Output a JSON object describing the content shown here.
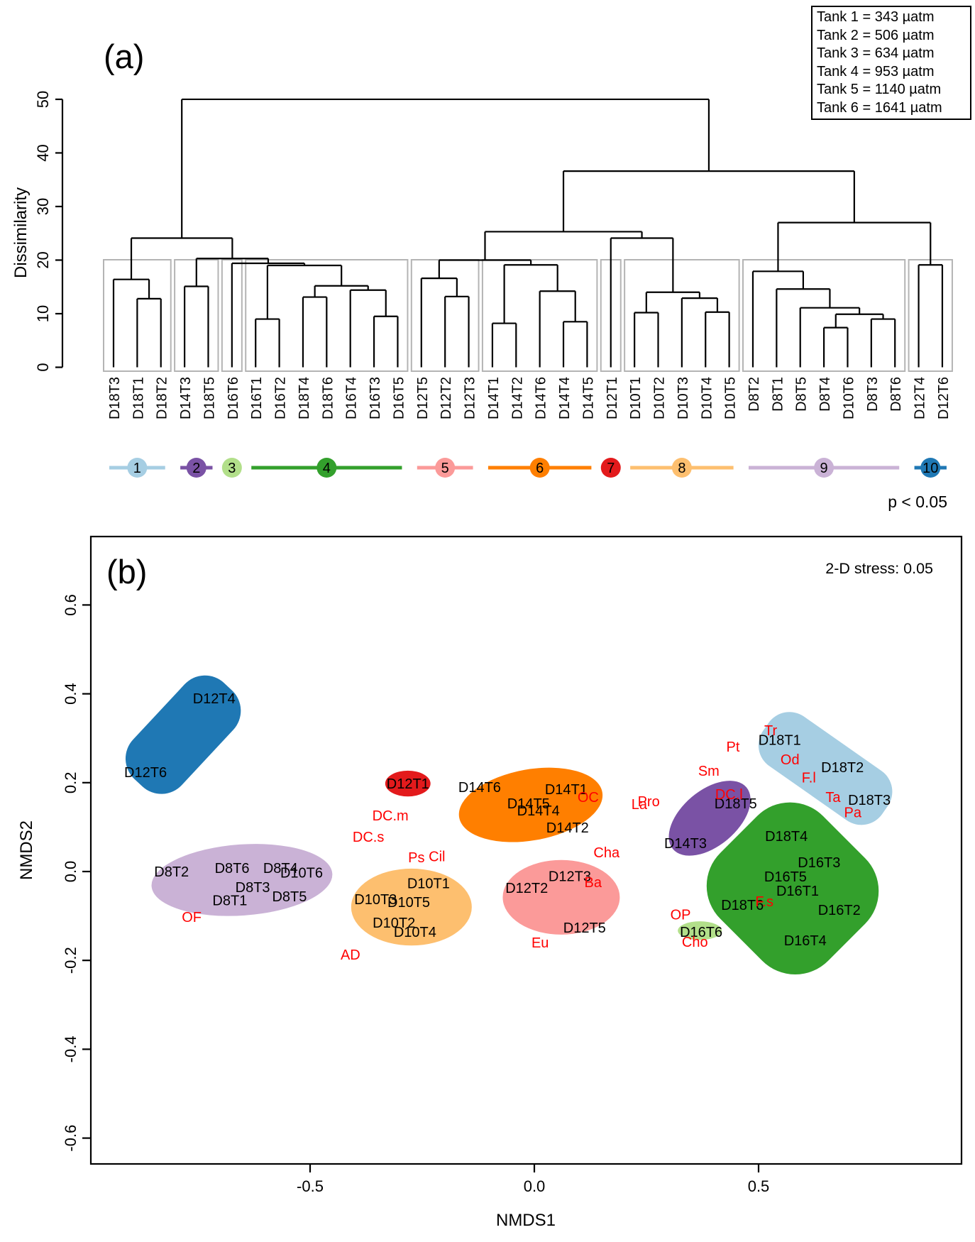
{
  "figure": {
    "panel_a_label": "(a)",
    "panel_b_label": "(b)",
    "significance_text": "p < 0.05",
    "stress_text": "2-D stress: 0.05",
    "tank_legend": [
      "Tank 1 = 343 µatm",
      "Tank 2 = 506 µatm",
      "Tank 3 = 634 µatm",
      "Tank 4 = 953 µatm",
      "Tank 5 = 1140 µatm",
      "Tank 6 = 1641 µatm"
    ]
  },
  "chart_data": [
    {
      "type": "dendrogram",
      "ylabel": "Dissimilarity",
      "ylim": [
        0,
        50
      ],
      "yticks": [
        0,
        10,
        20,
        30,
        40,
        50
      ],
      "significance": "p < 0.05",
      "leaves": [
        "D18T3",
        "D18T1",
        "D18T2",
        "D14T3",
        "D18T5",
        "D16T6",
        "D16T1",
        "D16T2",
        "D18T4",
        "D18T6",
        "D16T4",
        "D16T3",
        "D16T5",
        "D12T5",
        "D12T2",
        "D12T3",
        "D14T1",
        "D14T2",
        "D14T6",
        "D14T4",
        "D14T5",
        "D12T1",
        "D10T1",
        "D10T2",
        "D10T3",
        "D10T4",
        "D10T5",
        "D8T2",
        "D8T1",
        "D8T5",
        "D8T4",
        "D10T6",
        "D8T3",
        "D8T6",
        "D12T4",
        "D12T6"
      ],
      "tree": [
        50,
        [
          24.1,
          [
            16.4,
            "D18T3",
            [
              12.8,
              "D18T1",
              "D18T2"
            ]
          ],
          [
            20.3,
            [
              15.1,
              "D14T3",
              "D18T5"
            ],
            [
              19.4,
              "D16T6",
              [
                19.0,
                [
                  9.0,
                  "D16T1",
                  "D16T2"
                ],
                [
                  15.2,
                  [
                    13.1,
                    "D18T4",
                    "D18T6"
                  ],
                  [
                    14.4,
                    "D16T4",
                    [
                      9.5,
                      "D16T3",
                      "D16T5"
                    ]
                  ]
                ]
              ]
            ]
          ]
        ],
        [
          36.6,
          [
            25.3,
            [
              20.0,
              [
                16.6,
                "D12T5",
                [
                  13.2,
                  "D12T2",
                  "D12T3"
                ]
              ],
              [
                19.1,
                [
                  8.2,
                  "D14T1",
                  "D14T2"
                ],
                [
                  14.2,
                  "D14T6",
                  [
                    8.5,
                    "D14T4",
                    "D14T5"
                  ]
                ]
              ]
            ],
            [
              24.1,
              "D12T1",
              [
                14.0,
                [
                  10.2,
                  "D10T1",
                  "D10T2"
                ],
                [
                  12.9,
                  "D10T3",
                  [
                    10.3,
                    "D10T4",
                    "D10T5"
                  ]
                ]
              ]
            ]
          ],
          [
            27.0,
            [
              17.9,
              "D8T2",
              [
                14.6,
                "D8T1",
                [
                  11.1,
                  "D8T5",
                  [
                    9.9,
                    [
                      7.4,
                      "D8T4",
                      "D10T6"
                    ],
                    [
                      9.0,
                      "D8T3",
                      "D8T6"
                    ]
                  ]
                ]
              ]
            ],
            [
              19.1,
              "D12T4",
              "D12T6"
            ]
          ]
        ]
      ],
      "clusters": [
        {
          "id": 1,
          "color": "#a6cee3",
          "from": 0,
          "to": 2
        },
        {
          "id": 2,
          "color": "#7a52a5",
          "from": 3,
          "to": 4
        },
        {
          "id": 3,
          "color": "#b2df8a",
          "from": 5,
          "to": 5
        },
        {
          "id": 4,
          "color": "#33a02c",
          "from": 6,
          "to": 12
        },
        {
          "id": 5,
          "color": "#fb9a99",
          "from": 13,
          "to": 15
        },
        {
          "id": 6,
          "color": "#ff7f00",
          "from": 16,
          "to": 20
        },
        {
          "id": 7,
          "color": "#e31a1c",
          "from": 21,
          "to": 21
        },
        {
          "id": 8,
          "color": "#fdbf6f",
          "from": 22,
          "to": 26
        },
        {
          "id": 9,
          "color": "#cab2d6",
          "from": 27,
          "to": 33
        },
        {
          "id": 10,
          "color": "#1f78b4",
          "from": 34,
          "to": 35
        }
      ]
    },
    {
      "type": "scatter",
      "xlabel": "NMDS1",
      "ylabel": "NMDS2",
      "stress": "2-D stress: 0.05",
      "xticks": [
        -0.5,
        0.0,
        0.5
      ],
      "yticks": [
        0.6,
        0.4,
        0.2,
        0.0,
        -0.2,
        -0.4,
        -0.6
      ],
      "xlim": [
        -0.99,
        0.95
      ],
      "ylim": [
        -0.66,
        0.75
      ],
      "species_color": "#ff0000",
      "groups": [
        {
          "cluster": 10,
          "color": "#1f78b4",
          "shape": "round-rect",
          "cx": -0.783,
          "cy": 0.308,
          "w": 0.293,
          "h": 0.15,
          "rot": -47,
          "samples": [
            {
              "label": "D12T4",
              "x": -0.714,
              "y": 0.39
            },
            {
              "label": "D12T6",
              "x": -0.867,
              "y": 0.224
            }
          ]
        },
        {
          "cluster": 7,
          "color": "#e31a1c",
          "shape": "ellipse",
          "cx": -0.282,
          "cy": 0.198,
          "w": 0.101,
          "h": 0.058,
          "rot": 0,
          "samples": [
            {
              "label": "D12T1",
              "x": -0.282,
              "y": 0.198
            }
          ]
        },
        {
          "cluster": 6,
          "color": "#ff7f00",
          "shape": "ellipse",
          "cx": -0.008,
          "cy": 0.15,
          "w": 0.324,
          "h": 0.16,
          "rot": -10,
          "samples": [
            {
              "label": "D14T6",
              "x": -0.122,
              "y": 0.19
            },
            {
              "label": "D14T1",
              "x": 0.071,
              "y": 0.185
            },
            {
              "label": "D14T5",
              "x": -0.013,
              "y": 0.153
            },
            {
              "label": "D14T4",
              "x": 0.009,
              "y": 0.137
            },
            {
              "label": "D14T2",
              "x": 0.074,
              "y": 0.099
            }
          ]
        },
        {
          "cluster": 2,
          "color": "#7a52a5",
          "shape": "ellipse",
          "cx": 0.391,
          "cy": 0.12,
          "w": 0.214,
          "h": 0.125,
          "rot": -40,
          "samples": [
            {
              "label": "D18T5",
              "x": 0.449,
              "y": 0.153
            },
            {
              "label": "D14T3",
              "x": 0.337,
              "y": 0.064
            }
          ]
        },
        {
          "cluster": 1,
          "color": "#a6cee3",
          "shape": "round-rect",
          "cx": 0.649,
          "cy": 0.232,
          "w": 0.324,
          "h": 0.136,
          "rot": 35,
          "samples": [
            {
              "label": "D18T1",
              "x": 0.547,
              "y": 0.296
            },
            {
              "label": "D18T2",
              "x": 0.687,
              "y": 0.235
            },
            {
              "label": "D18T3",
              "x": 0.747,
              "y": 0.161
            }
          ]
        },
        {
          "cluster": 4,
          "color": "#33a02c",
          "shape": "squircle",
          "cx": 0.576,
          "cy": -0.038,
          "w": 0.34,
          "h": 0.327,
          "rot": 45,
          "samples": [
            {
              "label": "D18T4",
              "x": 0.562,
              "y": 0.08
            },
            {
              "label": "D16T3",
              "x": 0.635,
              "y": 0.021
            },
            {
              "label": "D16T5",
              "x": 0.56,
              "y": -0.011
            },
            {
              "label": "D16T1",
              "x": 0.587,
              "y": -0.043
            },
            {
              "label": "D18T6",
              "x": 0.464,
              "y": -0.075
            },
            {
              "label": "D16T2",
              "x": 0.68,
              "y": -0.086
            },
            {
              "label": "D16T4",
              "x": 0.604,
              "y": -0.155
            }
          ]
        },
        {
          "cluster": 3,
          "color": "#b2df8a",
          "shape": "ellipse",
          "cx": 0.369,
          "cy": -0.133,
          "w": 0.098,
          "h": 0.042,
          "rot": 0,
          "samples": [
            {
              "label": "D16T6",
              "x": 0.372,
              "y": -0.136
            }
          ]
        },
        {
          "cluster": 5,
          "color": "#fb9a99",
          "shape": "ellipse",
          "cx": 0.06,
          "cy": -0.058,
          "w": 0.261,
          "h": 0.168,
          "rot": 0,
          "samples": [
            {
              "label": "D12T3",
              "x": 0.079,
              "y": -0.01
            },
            {
              "label": "D12T2",
              "x": -0.017,
              "y": -0.037
            },
            {
              "label": "D12T5",
              "x": 0.112,
              "y": -0.126
            }
          ]
        },
        {
          "cluster": 8,
          "color": "#fdbf6f",
          "shape": "ellipse",
          "cx": -0.274,
          "cy": -0.08,
          "w": 0.269,
          "h": 0.173,
          "rot": 0,
          "samples": [
            {
              "label": "D10T1",
              "x": -0.236,
              "y": -0.026
            },
            {
              "label": "D10T3",
              "x": -0.354,
              "y": -0.062
            },
            {
              "label": "D10T5",
              "x": -0.28,
              "y": -0.069
            },
            {
              "label": "D10T2",
              "x": -0.313,
              "y": -0.115
            },
            {
              "label": "D10T4",
              "x": -0.266,
              "y": -0.136
            }
          ]
        },
        {
          "cluster": 9,
          "color": "#cab2d6",
          "shape": "ellipse",
          "cx": -0.652,
          "cy": -0.019,
          "w": 0.404,
          "h": 0.16,
          "rot": -4,
          "samples": [
            {
              "label": "D8T2",
              "x": -0.809,
              "y": 0.0
            },
            {
              "label": "D8T6",
              "x": -0.674,
              "y": 0.008
            },
            {
              "label": "D8T4",
              "x": -0.566,
              "y": 0.008
            },
            {
              "label": "D10T6",
              "x": -0.519,
              "y": -0.002
            },
            {
              "label": "D8T3",
              "x": -0.628,
              "y": -0.035
            },
            {
              "label": "D8T1",
              "x": -0.679,
              "y": -0.065
            },
            {
              "label": "D8T5",
              "x": -0.546,
              "y": -0.056
            }
          ]
        }
      ],
      "species_labels": [
        {
          "label": "Tr",
          "x": 0.527,
          "y": 0.318
        },
        {
          "label": "Pt",
          "x": 0.443,
          "y": 0.281
        },
        {
          "label": "Od",
          "x": 0.57,
          "y": 0.252
        },
        {
          "label": "Sm",
          "x": 0.389,
          "y": 0.227
        },
        {
          "label": "F.l",
          "x": 0.612,
          "y": 0.212
        },
        {
          "label": "Ta",
          "x": 0.666,
          "y": 0.168
        },
        {
          "label": "Pa",
          "x": 0.71,
          "y": 0.133
        },
        {
          "label": "DC.l",
          "x": 0.434,
          "y": 0.174
        },
        {
          "label": "OC",
          "x": 0.12,
          "y": 0.168
        },
        {
          "label": "Pro",
          "x": 0.255,
          "y": 0.158
        },
        {
          "label": "La",
          "x": 0.234,
          "y": 0.152
        },
        {
          "label": "Cha",
          "x": 0.161,
          "y": 0.043
        },
        {
          "label": "DC.m",
          "x": -0.321,
          "y": 0.126
        },
        {
          "label": "DC.s",
          "x": -0.37,
          "y": 0.078
        },
        {
          "label": "Ps",
          "x": -0.263,
          "y": 0.032
        },
        {
          "label": "Cil",
          "x": -0.217,
          "y": 0.034
        },
        {
          "label": "Ba",
          "x": 0.131,
          "y": -0.024
        },
        {
          "label": "Eu",
          "x": 0.013,
          "y": -0.16
        },
        {
          "label": "OP",
          "x": 0.326,
          "y": -0.097
        },
        {
          "label": "Cho",
          "x": 0.358,
          "y": -0.158
        },
        {
          "label": "F.s",
          "x": 0.513,
          "y": -0.067
        },
        {
          "label": "OF",
          "x": -0.764,
          "y": -0.102
        },
        {
          "label": "AD",
          "x": -0.41,
          "y": -0.187
        }
      ]
    }
  ]
}
